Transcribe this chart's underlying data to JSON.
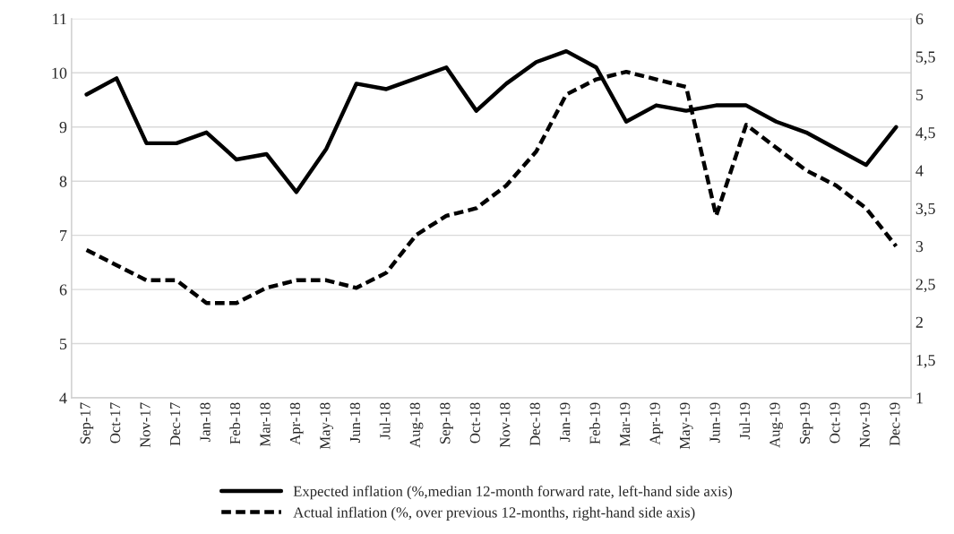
{
  "chart_data": {
    "type": "line",
    "categories": [
      "Sep-17",
      "Oct-17",
      "Nov-17",
      "Dec-17",
      "Jan-18",
      "Feb-18",
      "Mar-18",
      "Apr-18",
      "May-18",
      "Jun-18",
      "Jul-18",
      "Aug-18",
      "Sep-18",
      "Oct-18",
      "Nov-18",
      "Dec-18",
      "Jan-19",
      "Feb-19",
      "Mar-19",
      "Apr-19",
      "May-19",
      "Jun-19",
      "Jul-19",
      "Aug-19",
      "Sep-19",
      "Oct-19",
      "Nov-19",
      "Dec-19"
    ],
    "series": [
      {
        "name": "Expected inflation (%,median 12-month forward rate, left-hand side axis)",
        "color": "#000000",
        "line_style": "solid",
        "values": [
          9.6,
          9.9,
          8.7,
          8.7,
          8.9,
          8.4,
          8.5,
          7.8,
          8.6,
          9.8,
          9.7,
          9.9,
          10.1,
          9.3,
          9.8,
          10.2,
          10.4,
          10.1,
          9.1,
          9.4,
          9.3,
          9.4,
          9.4,
          9.1,
          8.9,
          8.6,
          8.3,
          9.0
        ]
      },
      {
        "name": "Actual inflation (%, over previous 12-months, right-hand side axis)",
        "color": "#000000",
        "line_style": "dashed",
        "axis": "y2",
        "values": [
          2.95,
          2.75,
          2.55,
          2.55,
          2.25,
          2.25,
          2.45,
          2.55,
          2.55,
          2.45,
          2.65,
          3.15,
          3.4,
          3.5,
          3.8,
          4.25,
          5.0,
          5.2,
          5.3,
          5.2,
          5.1,
          3.4,
          4.6,
          4.3,
          4.0,
          3.8,
          3.5,
          3.0
        ]
      }
    ],
    "ylim": [
      4,
      11
    ],
    "yticks": [
      4,
      5,
      6,
      7,
      8,
      9,
      10,
      11
    ],
    "y2lim": [
      1,
      6
    ],
    "y2ticks": [
      1,
      {
        "value": 1.5,
        "label": "1,5"
      },
      2,
      {
        "value": 2.5,
        "label": "2,5"
      },
      3,
      {
        "value": 3.5,
        "label": "3,5"
      },
      4,
      {
        "value": 4.5,
        "label": "4,5"
      },
      5,
      {
        "value": 5.5,
        "label": "5,5"
      },
      6
    ],
    "grid": "y",
    "legend": "bottom"
  }
}
